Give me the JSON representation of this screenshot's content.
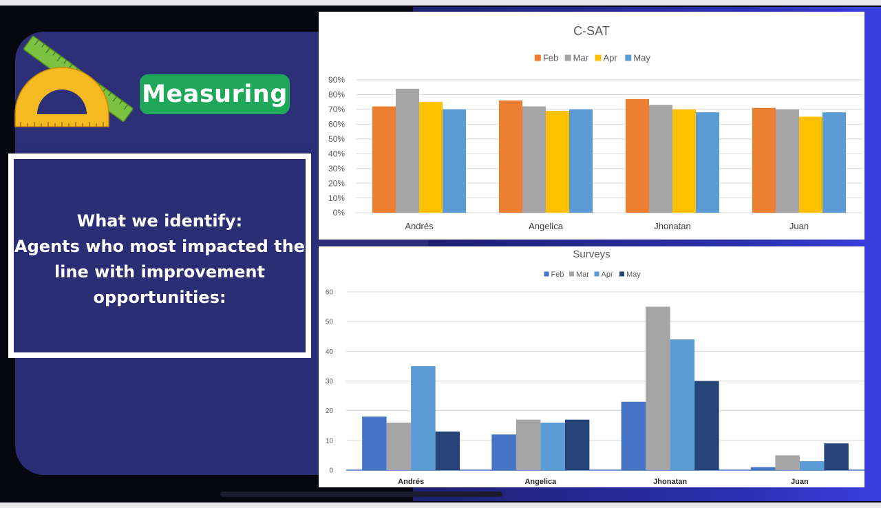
{
  "slide": {
    "badge_label": "Measuring",
    "text_lines": [
      "What  we identify:",
      "Agents who most impacted the",
      "line with improvement",
      "opportunities:"
    ],
    "colors": {
      "badge": "#1fa85a",
      "panel": "#2d3079",
      "text_box": "#2b2e74"
    },
    "icons": [
      "ruler-icon",
      "protractor-icon"
    ]
  },
  "chart_data": [
    {
      "type": "bar",
      "title": "C-SAT",
      "categories": [
        "Andrés",
        "Angelica",
        "Jhonatan",
        "Juan"
      ],
      "series": [
        {
          "name": "Feb",
          "values": [
            72,
            76,
            77,
            71
          ],
          "color": "#ed7d31"
        },
        {
          "name": "Mar",
          "values": [
            84,
            72,
            73,
            70
          ],
          "color": "#a5a5a5"
        },
        {
          "name": "Apr",
          "values": [
            75,
            69,
            70,
            65
          ],
          "color": "#ffc000"
        },
        {
          "name": "May",
          "values": [
            70,
            70,
            68,
            68
          ],
          "color": "#5b9bd5"
        }
      ],
      "ylim": [
        0,
        90
      ],
      "ytick_labels": [
        "0%",
        "10%",
        "20%",
        "30%",
        "40%",
        "50%",
        "60%",
        "70%",
        "80%",
        "90%"
      ],
      "legend": "top",
      "grid": true
    },
    {
      "type": "bar",
      "title": "Surveys",
      "categories": [
        "Andrés",
        "Angelica",
        "Jhonatan",
        "Juan"
      ],
      "series": [
        {
          "name": "Feb",
          "values": [
            18,
            12,
            23,
            1
          ],
          "color": "#4472c4"
        },
        {
          "name": "Mar",
          "values": [
            16,
            17,
            55,
            5
          ],
          "color": "#a5a5a5"
        },
        {
          "name": "Apr",
          "values": [
            35,
            16,
            44,
            3
          ],
          "color": "#5b9bd5"
        },
        {
          "name": "May",
          "values": [
            13,
            17,
            30,
            9
          ],
          "color": "#264478"
        }
      ],
      "ylim": [
        0,
        60
      ],
      "ytick_labels": [
        "0",
        "10",
        "20",
        "30",
        "40",
        "50",
        "60"
      ],
      "legend": "top",
      "grid": true
    }
  ]
}
